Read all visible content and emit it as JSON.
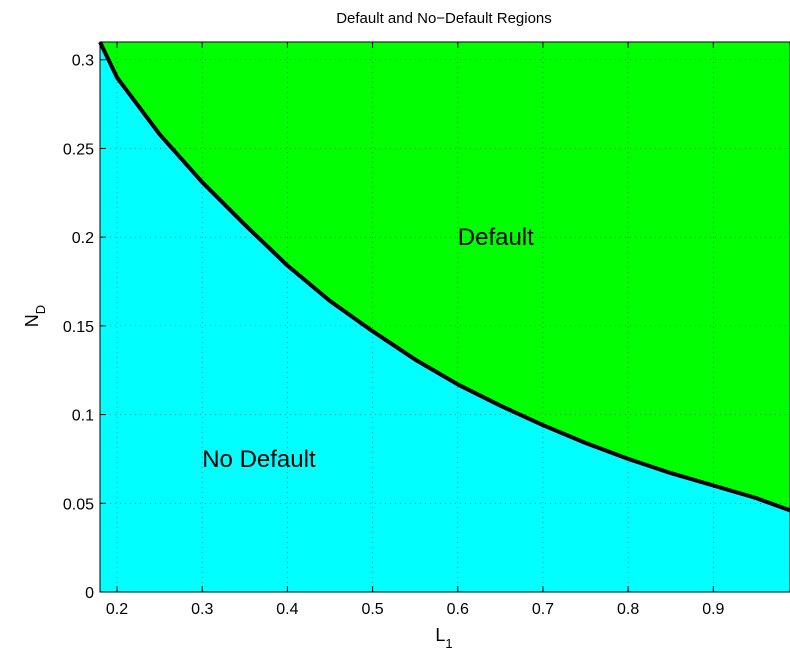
{
  "chart_data": {
    "type": "area",
    "title": "Default and No−Default Regions",
    "xlabel": {
      "main": "L",
      "sub": "1"
    },
    "ylabel": {
      "main": "N",
      "sub": "D"
    },
    "xlim": [
      0.18,
      0.99
    ],
    "ylim": [
      0,
      0.31
    ],
    "xticks": [
      0.2,
      0.3,
      0.4,
      0.5,
      0.6,
      0.7,
      0.8,
      0.9
    ],
    "xtick_labels": [
      "0.2",
      "0.3",
      "0.4",
      "0.5",
      "0.6",
      "0.7",
      "0.8",
      "0.9"
    ],
    "yticks": [
      0,
      0.05,
      0.1,
      0.15,
      0.2,
      0.25,
      0.3
    ],
    "ytick_labels": [
      "0",
      "0.05",
      "0.1",
      "0.15",
      "0.2",
      "0.25",
      "0.3"
    ],
    "grid": true,
    "boundary": {
      "x": [
        0.18,
        0.2,
        0.25,
        0.3,
        0.35,
        0.4,
        0.45,
        0.5,
        0.55,
        0.6,
        0.65,
        0.7,
        0.75,
        0.8,
        0.85,
        0.9,
        0.95,
        0.99
      ],
      "y": [
        0.31,
        0.29,
        0.258,
        0.231,
        0.207,
        0.184,
        0.164,
        0.147,
        0.131,
        0.117,
        0.105,
        0.094,
        0.084,
        0.075,
        0.067,
        0.06,
        0.053,
        0.046
      ]
    },
    "regions": [
      {
        "label": "Default",
        "side": "above",
        "color": "#00ff00",
        "label_at": [
          0.6,
          0.2
        ]
      },
      {
        "label": "No Default",
        "side": "below",
        "color": "#00ffff",
        "label_at": [
          0.3,
          0.075
        ]
      }
    ],
    "line_color": "#000000"
  }
}
